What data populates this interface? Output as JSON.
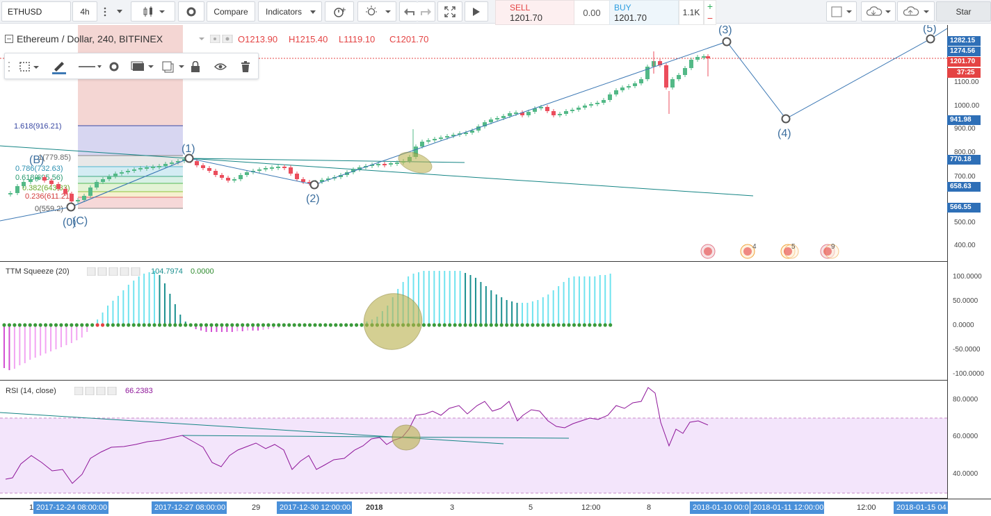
{
  "toolbar": {
    "symbol": "ETHUSD",
    "interval": "4h",
    "compare_label": "Compare",
    "indicators_label": "Indicators",
    "star_label": "Star"
  },
  "trade": {
    "sell_label": "SELL",
    "sell_price": "1201.70",
    "spread": "0.00",
    "buy_label": "BUY",
    "buy_price": "1201.70",
    "quantity": "1.1K",
    "plus": "+",
    "minus": "−"
  },
  "main_chart": {
    "title": "Ethereum / Dollar, 240, BITFINEX",
    "open": "O1213.90",
    "high": "H1215.40",
    "low": "L1119.10",
    "close": "C1201.70",
    "price_axis": [
      "1282.15",
      "1274.56",
      "1201.70",
      "1100.00",
      "1000.00",
      "941.98",
      "900.00",
      "800.00",
      "770.18",
      "700.00",
      "658.63",
      "566.55",
      "500.00",
      "400.00"
    ],
    "countdown": "37:25",
    "fib_labels": [
      "1.618(916.21)",
      "1(779.85)",
      "0.786(732.63)",
      "0.618(695.56)",
      "0.382(643.33)",
      "0.236(611.21)",
      "0(559.2)"
    ],
    "wave_labels": [
      "(1)",
      "(2)",
      "(3)",
      "(4)",
      "(5)",
      "(B)",
      "(C)",
      "(0)"
    ],
    "event_counts": [
      "4",
      "5",
      "9"
    ]
  },
  "ttm": {
    "label": "TTM Squeeze (20)",
    "value1": "104.7974",
    "value2": "0.0000",
    "axis": [
      "100.0000",
      "50.0000",
      "0.0000",
      "-50.0000",
      "-100.0000"
    ]
  },
  "rsi": {
    "label": "RSI (14, close)",
    "value": "66.2383",
    "axis": [
      "80.0000",
      "60.0000",
      "40.0000"
    ]
  },
  "time_axis": {
    "labels": [
      "1",
      "2017-12-24 08:00:00",
      "2017-12-27 08:00:00",
      "29",
      "2017-12-30 12:00:00",
      "2018",
      "3",
      "5",
      "12:00",
      "8",
      "2018-01-10 00:0",
      "2018-01-11 12:00:00",
      "12:00",
      "2018-01-15 04"
    ]
  },
  "colors": {
    "up": "#53b987",
    "down": "#eb4d5c",
    "line_blue": "#3c78b4",
    "trend_green": "#138484",
    "rsi_purple": "#8e1599",
    "rsi_fill": "#f3e5fb",
    "ttm_cyan": "#6fe3ef",
    "ttm_dark": "#1a8f8f",
    "ttm_magenta": "#d34fd3"
  }
}
